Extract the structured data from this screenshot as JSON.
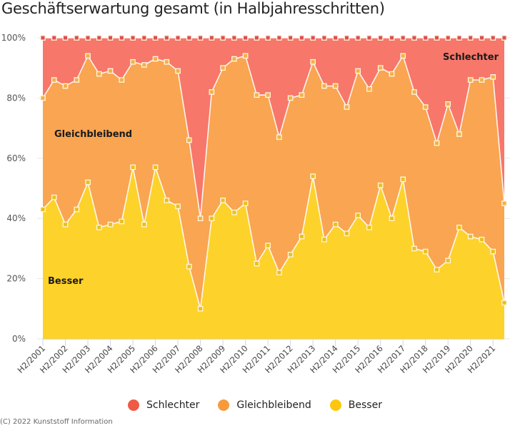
{
  "chart_data": {
    "type": "area",
    "stacking": "percent",
    "title": "Geschäftserwartung gesamt (in Halbjahresschritten)",
    "xlabel": "",
    "ylabel": "",
    "ylim": [
      0,
      100
    ],
    "y_ticks": [
      "0%",
      "20%",
      "40%",
      "60%",
      "80%",
      "100%"
    ],
    "grid": true,
    "x_tick_labels": [
      "H2/2001",
      "H2/2002",
      "H2/2003",
      "H2/2004",
      "H2/2005",
      "H2/2006",
      "H2/2007",
      "H2/2008",
      "H2/2009",
      "H2/2010",
      "H2/2011",
      "H2/2012",
      "H2/2013",
      "H2/2014",
      "H2/2015",
      "H2/2016",
      "H2/2017",
      "H2/2018",
      "H2/2019",
      "H2/2020",
      "H2/2021"
    ],
    "x": [
      "H2/2001",
      "H1/2002",
      "H2/2002",
      "H1/2003",
      "H2/2003",
      "H1/2004",
      "H2/2004",
      "H1/2005",
      "H2/2005",
      "H1/2006",
      "H2/2006",
      "H1/2007",
      "H2/2007",
      "H1/2008",
      "H2/2008",
      "H1/2009",
      "H2/2009",
      "H1/2010",
      "H2/2010",
      "H1/2011",
      "H2/2011",
      "H1/2012",
      "H2/2012",
      "H1/2013",
      "H2/2013",
      "H1/2014",
      "H2/2014",
      "H1/2015",
      "H2/2015",
      "H1/2016",
      "H2/2016",
      "H1/2017",
      "H2/2017",
      "H1/2018",
      "H2/2018",
      "H1/2019",
      "H2/2019",
      "H1/2020",
      "H2/2020",
      "H1/2021",
      "H2/2021",
      "H1/2022"
    ],
    "series": [
      {
        "name": "Schlechter",
        "color": "#f7776a",
        "marker_color": "#d9534f",
        "values": [
          20,
          14,
          16,
          14,
          6,
          12,
          11,
          14,
          8,
          9,
          7,
          8,
          11,
          34,
          60,
          18,
          10,
          7,
          6,
          19,
          19,
          33,
          20,
          19,
          8,
          16,
          16,
          23,
          11,
          17,
          10,
          12,
          6,
          18,
          23,
          35,
          22,
          32,
          14,
          14,
          13,
          55
        ]
      },
      {
        "name": "Gleichbleibend",
        "color": "#f9a552",
        "marker_color": "#f2b248",
        "values": [
          37,
          39,
          46,
          43,
          42,
          51,
          51,
          47,
          35,
          53,
          36,
          46,
          45,
          42,
          30,
          42,
          44,
          51,
          49,
          56,
          50,
          45,
          52,
          47,
          38,
          51,
          46,
          42,
          48,
          46,
          39,
          48,
          41,
          52,
          48,
          42,
          52,
          31,
          52,
          53,
          58,
          33
        ]
      },
      {
        "name": "Besser",
        "color": "#fdd22b",
        "marker_color": "#e9c21e",
        "values": [
          43,
          47,
          38,
          43,
          52,
          37,
          38,
          39,
          57,
          38,
          57,
          46,
          44,
          24,
          10,
          40,
          46,
          42,
          45,
          25,
          31,
          22,
          28,
          34,
          54,
          33,
          38,
          35,
          41,
          37,
          51,
          40,
          53,
          30,
          29,
          23,
          26,
          37,
          34,
          33,
          29,
          12
        ]
      }
    ],
    "series_labels_in_plot": [
      "Schlechter",
      "Gleichbleibend",
      "Besser"
    ],
    "legend": {
      "position": "bottom-center",
      "items": [
        {
          "label": "Schlechter",
          "color": "#ee5a45"
        },
        {
          "label": "Gleichbleibend",
          "color": "#f79a3e"
        },
        {
          "label": "Besser",
          "color": "#fdc70e"
        }
      ]
    },
    "credits": "(C) 2022 Kunststoff Information"
  }
}
